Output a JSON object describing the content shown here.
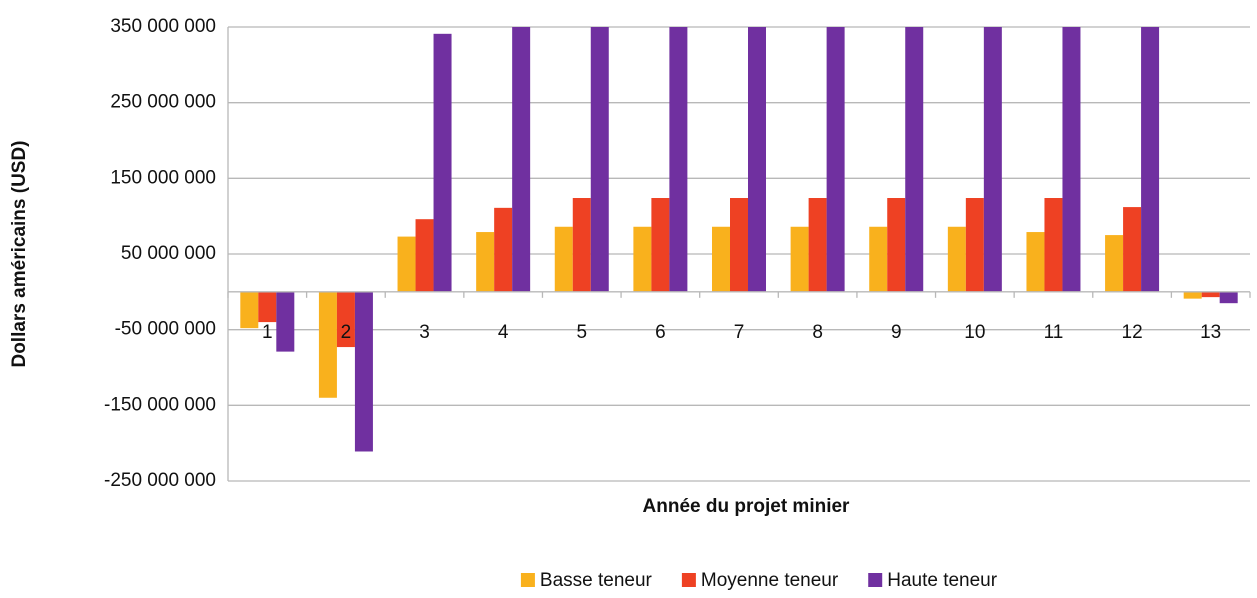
{
  "chart_data": {
    "type": "bar",
    "x_label": "Année du projet minier",
    "y_label": "Dollars américains (USD)",
    "categories": [
      "1",
      "2",
      "3",
      "4",
      "5",
      "6",
      "7",
      "8",
      "9",
      "10",
      "11",
      "12",
      "13"
    ],
    "series": [
      {
        "name": "Basse teneur",
        "color": "#f9b11d",
        "values": [
          -48000000,
          -140000000,
          73000000,
          79000000,
          86000000,
          86000000,
          86000000,
          86000000,
          86000000,
          86000000,
          79000000,
          75000000,
          -9000000
        ]
      },
      {
        "name": "Moyenne teneur",
        "color": "#ee4123",
        "values": [
          -40000000,
          -73000000,
          96000000,
          111000000,
          124000000,
          124000000,
          124000000,
          124000000,
          124000000,
          124000000,
          124000000,
          112000000,
          -7000000
        ]
      },
      {
        "name": "Haute teneur",
        "color": "#7030a0",
        "values": [
          -79000000,
          -211000000,
          341000000,
          350000000,
          350000000,
          350000000,
          350000000,
          350000000,
          350000000,
          350000000,
          350000000,
          350000000,
          -15000000
        ]
      }
    ],
    "ylim": [
      -250000000,
      350000000
    ],
    "yticks": [
      {
        "value": -250000000,
        "label": "-250 000 000"
      },
      {
        "value": -150000000,
        "label": "-150 000 000"
      },
      {
        "value": -50000000,
        "label": "-50 000 000"
      },
      {
        "value": 50000000,
        "label": "50 000 000"
      },
      {
        "value": 150000000,
        "label": "150 000 000"
      },
      {
        "value": 250000000,
        "label": "250 000 000"
      },
      {
        "value": 350000000,
        "label": "350 000 000"
      }
    ],
    "grid": true,
    "legend": "bottom"
  }
}
